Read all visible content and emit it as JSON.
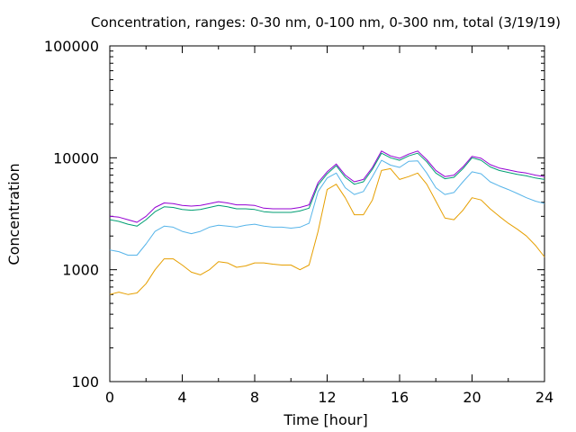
{
  "chart_data": {
    "type": "line",
    "title": "Concentration, ranges: 0-30 nm, 0-100 nm, 0-300 nm, total (3/19/19)",
    "xlabel": "Time [hour]",
    "ylabel": "Concentration",
    "xlim": [
      0,
      24
    ],
    "ylim": [
      100,
      100000
    ],
    "yscale": "log",
    "xticks": [
      "0",
      "4",
      "8",
      "12",
      "16",
      "20",
      "24"
    ],
    "yticks": [
      "100",
      "1000",
      "10000",
      "100000"
    ],
    "grid": false,
    "legend": "none",
    "series": [
      {
        "color": "#9400d3",
        "x": [
          0,
          0.5,
          1,
          1.5,
          2,
          2.5,
          3,
          3.5,
          4,
          4.5,
          5,
          5.5,
          6,
          6.5,
          7,
          7.5,
          8,
          8.5,
          9,
          9.5,
          10,
          10.5,
          11,
          11.5,
          12,
          12.5,
          13,
          13.5,
          14,
          14.5,
          15,
          15.5,
          16,
          16.5,
          17,
          17.5,
          18,
          18.5,
          19,
          19.5,
          20,
          20.5,
          21,
          21.5,
          22,
          22.5,
          23,
          23.5,
          24
        ],
        "values": [
          3000,
          2950,
          2800,
          2650,
          3000,
          3600,
          3950,
          3900,
          3750,
          3700,
          3750,
          3900,
          4050,
          3950,
          3800,
          3800,
          3750,
          3550,
          3500,
          3500,
          3500,
          3600,
          3800,
          6000,
          7500,
          8800,
          7000,
          6100,
          6400,
          8200,
          11500,
          10400,
          9900,
          10800,
          11500,
          9600,
          7700,
          6800,
          7000,
          8300,
          10300,
          9900,
          8700,
          8100,
          7800,
          7500,
          7300,
          7000,
          6800
        ]
      },
      {
        "color": "#009e73",
        "x": [
          0,
          0.5,
          1,
          1.5,
          2,
          2.5,
          3,
          3.5,
          4,
          4.5,
          5,
          5.5,
          6,
          6.5,
          7,
          7.5,
          8,
          8.5,
          9,
          9.5,
          10,
          10.5,
          11,
          11.5,
          12,
          12.5,
          13,
          13.5,
          14,
          14.5,
          15,
          15.5,
          16,
          16.5,
          17,
          17.5,
          18,
          18.5,
          19,
          19.5,
          20,
          20.5,
          21,
          21.5,
          22,
          22.5,
          23,
          23.5,
          24
        ],
        "values": [
          2800,
          2700,
          2550,
          2450,
          2800,
          3300,
          3650,
          3600,
          3450,
          3400,
          3450,
          3600,
          3750,
          3650,
          3500,
          3500,
          3450,
          3300,
          3250,
          3250,
          3250,
          3350,
          3550,
          5700,
          7200,
          8500,
          6700,
          5800,
          6100,
          7900,
          11000,
          10000,
          9500,
          10400,
          11000,
          9200,
          7300,
          6500,
          6700,
          8000,
          10000,
          9500,
          8300,
          7700,
          7400,
          7100,
          6900,
          6600,
          6400
        ]
      },
      {
        "color": "#56b4e9",
        "x": [
          0,
          0.5,
          1,
          1.5,
          2,
          2.5,
          3,
          3.5,
          4,
          4.5,
          5,
          5.5,
          6,
          6.5,
          7,
          7.5,
          8,
          8.5,
          9,
          9.5,
          10,
          10.5,
          11,
          11.5,
          12,
          12.5,
          13,
          13.5,
          14,
          14.5,
          15,
          15.5,
          16,
          16.5,
          17,
          17.5,
          18,
          18.5,
          19,
          19.5,
          20,
          20.5,
          21,
          21.5,
          22,
          22.5,
          23,
          23.5,
          24
        ],
        "values": [
          1500,
          1450,
          1350,
          1350,
          1700,
          2200,
          2450,
          2400,
          2200,
          2100,
          2200,
          2400,
          2500,
          2450,
          2400,
          2500,
          2550,
          2450,
          2400,
          2400,
          2350,
          2400,
          2600,
          5000,
          6600,
          7300,
          5400,
          4700,
          5000,
          6800,
          9500,
          8600,
          8200,
          9300,
          9400,
          7300,
          5400,
          4700,
          4900,
          6100,
          7500,
          7200,
          6100,
          5600,
          5200,
          4800,
          4400,
          4100,
          3900
        ]
      },
      {
        "color": "#e69f00",
        "x": [
          0,
          0.5,
          1,
          1.5,
          2,
          2.5,
          3,
          3.5,
          4,
          4.5,
          5,
          5.5,
          6,
          6.5,
          7,
          7.5,
          8,
          8.5,
          9,
          9.5,
          10,
          10.5,
          11,
          11.5,
          12,
          12.5,
          13,
          13.5,
          14,
          14.5,
          15,
          15.5,
          16,
          16.5,
          17,
          17.5,
          18,
          18.5,
          19,
          19.5,
          20,
          20.5,
          21,
          21.5,
          22,
          22.5,
          23,
          23.5,
          24
        ],
        "values": [
          600,
          630,
          600,
          620,
          750,
          1000,
          1250,
          1250,
          1100,
          950,
          900,
          1000,
          1180,
          1150,
          1050,
          1080,
          1150,
          1150,
          1120,
          1100,
          1100,
          1000,
          1100,
          2200,
          5200,
          5800,
          4400,
          3100,
          3100,
          4200,
          7700,
          8000,
          6400,
          6800,
          7300,
          5800,
          4100,
          2900,
          2800,
          3400,
          4400,
          4200,
          3500,
          3000,
          2600,
          2300,
          2000,
          1650,
          1300
        ]
      }
    ]
  }
}
